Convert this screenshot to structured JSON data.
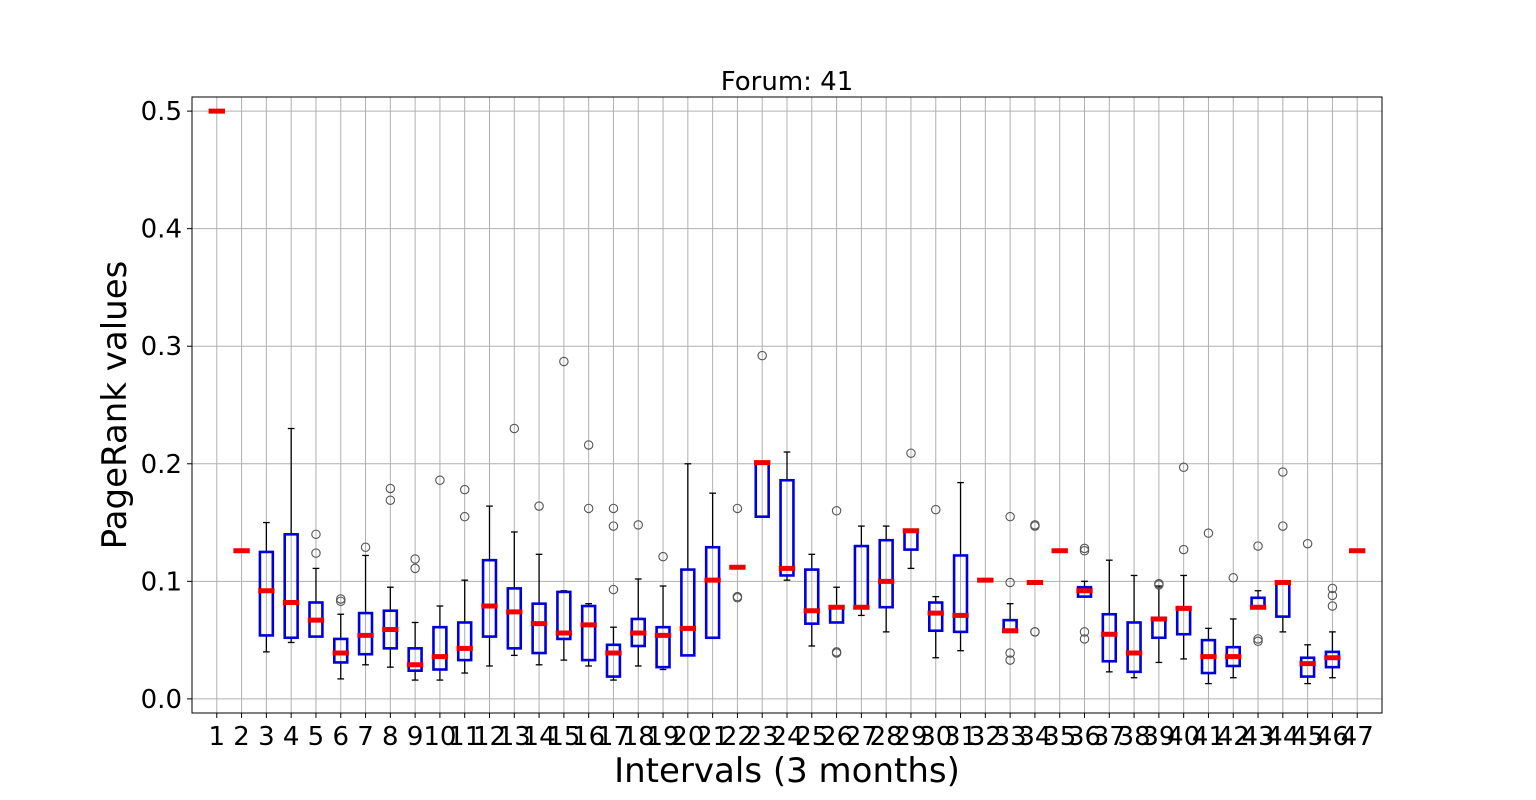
{
  "chart_data": {
    "type": "box",
    "title": "Forum: 41",
    "xlabel": "Intervals (3 months)",
    "ylabel": "PageRank values",
    "ylim": [
      -0.012,
      0.512
    ],
    "y_ticks": [
      "0.0",
      "0.1",
      "0.2",
      "0.3",
      "0.4",
      "0.5"
    ],
    "y_tick_values": [
      0.0,
      0.1,
      0.2,
      0.3,
      0.4,
      0.5
    ],
    "grid": true,
    "colors": {
      "box": "#0000dd",
      "median": "#ee0000",
      "whisker": "#000000",
      "outlier": "#555555",
      "grid": "#b0b0b0"
    },
    "categories": [
      "1",
      "2",
      "3",
      "4",
      "5",
      "6",
      "7",
      "8",
      "9",
      "10",
      "11",
      "12",
      "13",
      "14",
      "15",
      "16",
      "17",
      "18",
      "19",
      "20",
      "21",
      "22",
      "23",
      "24",
      "25",
      "26",
      "27",
      "28",
      "29",
      "30",
      "31",
      "32",
      "33",
      "34",
      "35",
      "36",
      "37",
      "38",
      "39",
      "40",
      "41",
      "42",
      "43",
      "44",
      "45",
      "46",
      "47"
    ],
    "boxes": [
      {
        "x": "1",
        "q1": 0.5,
        "median": 0.5,
        "q3": 0.5,
        "wlow": 0.5,
        "whigh": 0.5,
        "outliers": []
      },
      {
        "x": "2",
        "q1": 0.126,
        "median": 0.126,
        "q3": 0.126,
        "wlow": 0.126,
        "whigh": 0.126,
        "outliers": []
      },
      {
        "x": "3",
        "q1": 0.054,
        "median": 0.092,
        "q3": 0.125,
        "wlow": 0.04,
        "whigh": 0.15,
        "outliers": []
      },
      {
        "x": "4",
        "q1": 0.052,
        "median": 0.082,
        "q3": 0.14,
        "wlow": 0.048,
        "whigh": 0.23,
        "outliers": []
      },
      {
        "x": "5",
        "q1": 0.053,
        "median": 0.067,
        "q3": 0.082,
        "wlow": 0.053,
        "whigh": 0.111,
        "outliers": [
          0.124,
          0.14
        ]
      },
      {
        "x": "6",
        "q1": 0.031,
        "median": 0.039,
        "q3": 0.051,
        "wlow": 0.017,
        "whigh": 0.072,
        "outliers": [
          0.083,
          0.085
        ]
      },
      {
        "x": "7",
        "q1": 0.038,
        "median": 0.054,
        "q3": 0.073,
        "wlow": 0.029,
        "whigh": 0.122,
        "outliers": [
          0.129
        ]
      },
      {
        "x": "8",
        "q1": 0.043,
        "median": 0.059,
        "q3": 0.075,
        "wlow": 0.027,
        "whigh": 0.095,
        "outliers": [
          0.169,
          0.179
        ]
      },
      {
        "x": "9",
        "q1": 0.024,
        "median": 0.029,
        "q3": 0.043,
        "wlow": 0.016,
        "whigh": 0.065,
        "outliers": [
          0.111,
          0.119
        ]
      },
      {
        "x": "10",
        "q1": 0.025,
        "median": 0.036,
        "q3": 0.061,
        "wlow": 0.016,
        "whigh": 0.079,
        "outliers": [
          0.186
        ]
      },
      {
        "x": "11",
        "q1": 0.033,
        "median": 0.043,
        "q3": 0.065,
        "wlow": 0.022,
        "whigh": 0.101,
        "outliers": [
          0.155,
          0.178
        ]
      },
      {
        "x": "12",
        "q1": 0.053,
        "median": 0.079,
        "q3": 0.118,
        "wlow": 0.028,
        "whigh": 0.164,
        "outliers": []
      },
      {
        "x": "13",
        "q1": 0.043,
        "median": 0.074,
        "q3": 0.094,
        "wlow": 0.037,
        "whigh": 0.142,
        "outliers": [
          0.23
        ]
      },
      {
        "x": "14",
        "q1": 0.039,
        "median": 0.064,
        "q3": 0.081,
        "wlow": 0.029,
        "whigh": 0.123,
        "outliers": [
          0.164
        ]
      },
      {
        "x": "15",
        "q1": 0.051,
        "median": 0.056,
        "q3": 0.091,
        "wlow": 0.033,
        "whigh": 0.092,
        "outliers": [
          0.287
        ]
      },
      {
        "x": "16",
        "q1": 0.033,
        "median": 0.063,
        "q3": 0.079,
        "wlow": 0.028,
        "whigh": 0.081,
        "outliers": [
          0.162,
          0.216
        ]
      },
      {
        "x": "17",
        "q1": 0.019,
        "median": 0.039,
        "q3": 0.046,
        "wlow": 0.016,
        "whigh": 0.061,
        "outliers": [
          0.093,
          0.147,
          0.162
        ]
      },
      {
        "x": "18",
        "q1": 0.045,
        "median": 0.056,
        "q3": 0.068,
        "wlow": 0.028,
        "whigh": 0.102,
        "outliers": [
          0.148
        ]
      },
      {
        "x": "19",
        "q1": 0.027,
        "median": 0.054,
        "q3": 0.061,
        "wlow": 0.025,
        "whigh": 0.096,
        "outliers": [
          0.121
        ]
      },
      {
        "x": "20",
        "q1": 0.037,
        "median": 0.06,
        "q3": 0.11,
        "wlow": 0.037,
        "whigh": 0.2,
        "outliers": []
      },
      {
        "x": "21",
        "q1": 0.052,
        "median": 0.101,
        "q3": 0.129,
        "wlow": 0.052,
        "whigh": 0.175,
        "outliers": []
      },
      {
        "x": "22",
        "q1": 0.112,
        "median": 0.112,
        "q3": 0.112,
        "wlow": 0.112,
        "whigh": 0.112,
        "outliers": [
          0.086,
          0.087,
          0.162
        ]
      },
      {
        "x": "23",
        "q1": 0.155,
        "median": 0.201,
        "q3": 0.201,
        "wlow": 0.155,
        "whigh": 0.201,
        "outliers": [
          0.292
        ]
      },
      {
        "x": "24",
        "q1": 0.105,
        "median": 0.111,
        "q3": 0.186,
        "wlow": 0.101,
        "whigh": 0.21,
        "outliers": []
      },
      {
        "x": "25",
        "q1": 0.064,
        "median": 0.075,
        "q3": 0.11,
        "wlow": 0.045,
        "whigh": 0.123,
        "outliers": []
      },
      {
        "x": "26",
        "q1": 0.065,
        "median": 0.078,
        "q3": 0.078,
        "wlow": 0.065,
        "whigh": 0.095,
        "outliers": [
          0.039,
          0.04,
          0.16
        ]
      },
      {
        "x": "27",
        "q1": 0.078,
        "median": 0.078,
        "q3": 0.13,
        "wlow": 0.071,
        "whigh": 0.147,
        "outliers": []
      },
      {
        "x": "28",
        "q1": 0.078,
        "median": 0.1,
        "q3": 0.135,
        "wlow": 0.057,
        "whigh": 0.147,
        "outliers": []
      },
      {
        "x": "29",
        "q1": 0.127,
        "median": 0.143,
        "q3": 0.143,
        "wlow": 0.111,
        "whigh": 0.143,
        "outliers": [
          0.209
        ]
      },
      {
        "x": "30",
        "q1": 0.058,
        "median": 0.073,
        "q3": 0.082,
        "wlow": 0.035,
        "whigh": 0.087,
        "outliers": [
          0.161
        ]
      },
      {
        "x": "31",
        "q1": 0.057,
        "median": 0.071,
        "q3": 0.122,
        "wlow": 0.041,
        "whigh": 0.184,
        "outliers": []
      },
      {
        "x": "32",
        "q1": 0.101,
        "median": 0.101,
        "q3": 0.101,
        "wlow": 0.101,
        "whigh": 0.101,
        "outliers": []
      },
      {
        "x": "33",
        "q1": 0.057,
        "median": 0.058,
        "q3": 0.067,
        "wlow": 0.057,
        "whigh": 0.081,
        "outliers": [
          0.033,
          0.039,
          0.099,
          0.155
        ]
      },
      {
        "x": "34",
        "q1": 0.099,
        "median": 0.099,
        "q3": 0.099,
        "wlow": 0.099,
        "whigh": 0.099,
        "outliers": [
          0.057,
          0.057,
          0.147,
          0.148
        ]
      },
      {
        "x": "35",
        "q1": 0.126,
        "median": 0.126,
        "q3": 0.126,
        "wlow": 0.126,
        "whigh": 0.126,
        "outliers": []
      },
      {
        "x": "36",
        "q1": 0.087,
        "median": 0.092,
        "q3": 0.095,
        "wlow": 0.087,
        "whigh": 0.1,
        "outliers": [
          0.051,
          0.057,
          0.126,
          0.128
        ]
      },
      {
        "x": "37",
        "q1": 0.032,
        "median": 0.055,
        "q3": 0.072,
        "wlow": 0.023,
        "whigh": 0.118,
        "outliers": []
      },
      {
        "x": "38",
        "q1": 0.023,
        "median": 0.039,
        "q3": 0.065,
        "wlow": 0.018,
        "whigh": 0.105,
        "outliers": []
      },
      {
        "x": "39",
        "q1": 0.052,
        "median": 0.068,
        "q3": 0.069,
        "wlow": 0.031,
        "whigh": 0.096,
        "outliers": [
          0.097,
          0.098
        ]
      },
      {
        "x": "40",
        "q1": 0.055,
        "median": 0.077,
        "q3": 0.078,
        "wlow": 0.034,
        "whigh": 0.105,
        "outliers": [
          0.127,
          0.197
        ]
      },
      {
        "x": "41",
        "q1": 0.022,
        "median": 0.036,
        "q3": 0.05,
        "wlow": 0.013,
        "whigh": 0.06,
        "outliers": [
          0.141
        ]
      },
      {
        "x": "42",
        "q1": 0.028,
        "median": 0.036,
        "q3": 0.044,
        "wlow": 0.018,
        "whigh": 0.068,
        "outliers": [
          0.103
        ]
      },
      {
        "x": "43",
        "q1": 0.078,
        "median": 0.078,
        "q3": 0.086,
        "wlow": 0.078,
        "whigh": 0.092,
        "outliers": [
          0.049,
          0.051,
          0.13
        ]
      },
      {
        "x": "44",
        "q1": 0.07,
        "median": 0.099,
        "q3": 0.099,
        "wlow": 0.057,
        "whigh": 0.099,
        "outliers": [
          0.147,
          0.193
        ]
      },
      {
        "x": "45",
        "q1": 0.019,
        "median": 0.03,
        "q3": 0.035,
        "wlow": 0.013,
        "whigh": 0.046,
        "outliers": [
          0.132
        ]
      },
      {
        "x": "46",
        "q1": 0.027,
        "median": 0.035,
        "q3": 0.04,
        "wlow": 0.018,
        "whigh": 0.057,
        "outliers": [
          0.079,
          0.088,
          0.094
        ]
      },
      {
        "x": "47",
        "q1": 0.126,
        "median": 0.126,
        "q3": 0.126,
        "wlow": 0.126,
        "whigh": 0.126,
        "outliers": []
      }
    ]
  }
}
